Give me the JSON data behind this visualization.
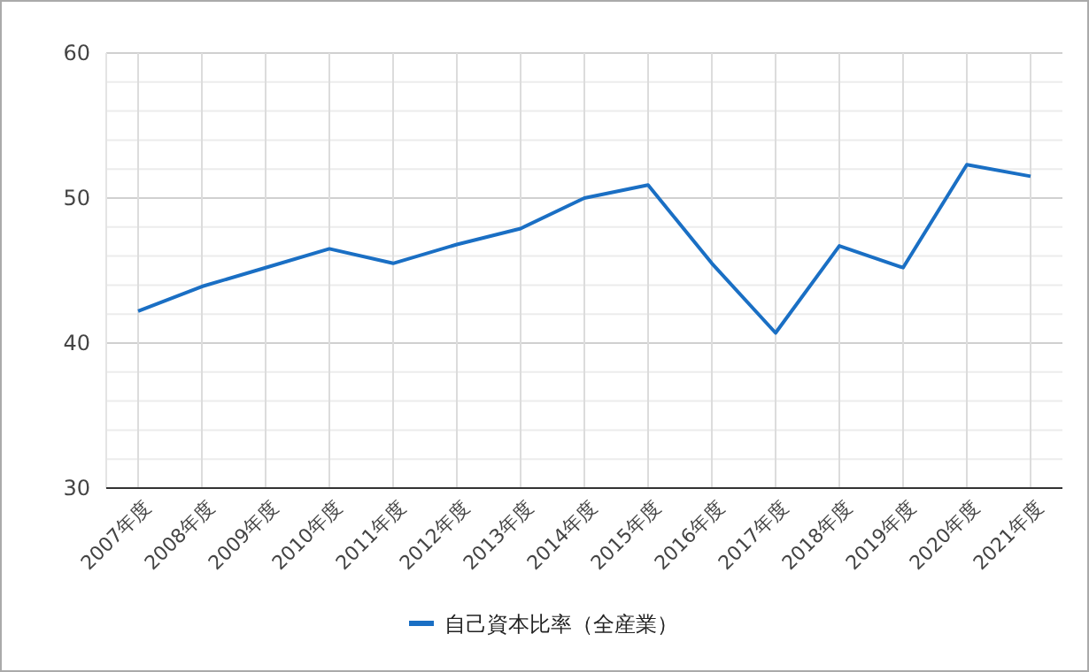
{
  "chart_data": {
    "type": "line",
    "categories": [
      "2007年度",
      "2008年度",
      "2009年度",
      "2010年度",
      "2011年度",
      "2012年度",
      "2013年度",
      "2014年度",
      "2015年度",
      "2016年度",
      "2017年度",
      "2018年度",
      "2019年度",
      "2020年度",
      "2021年度"
    ],
    "series": [
      {
        "name": "自己資本比率（全産業）",
        "color": "#1a6fc4",
        "values": [
          42.2,
          43.9,
          45.2,
          46.5,
          45.5,
          46.8,
          47.9,
          50.0,
          50.9,
          45.5,
          40.7,
          46.7,
          45.2,
          52.3,
          51.5
        ]
      }
    ],
    "ylim": [
      30,
      60
    ],
    "yticks": [
      30,
      {
        "value": 32,
        "label": null
      },
      {
        "value": 34,
        "label": null
      },
      {
        "value": 36,
        "label": null
      },
      {
        "value": 38,
        "label": null
      },
      40,
      {
        "value": 42,
        "label": null
      },
      {
        "value": 44,
        "label": null
      },
      {
        "value": 46,
        "label": null
      },
      {
        "value": 48,
        "label": null
      },
      50,
      {
        "value": 52,
        "label": null
      },
      {
        "value": 54,
        "label": null
      },
      {
        "value": 56,
        "label": null
      },
      {
        "value": 58,
        "label": null
      },
      60
    ],
    "grid": true,
    "legend": "bottom",
    "marker": "none",
    "line_style": "solid"
  }
}
